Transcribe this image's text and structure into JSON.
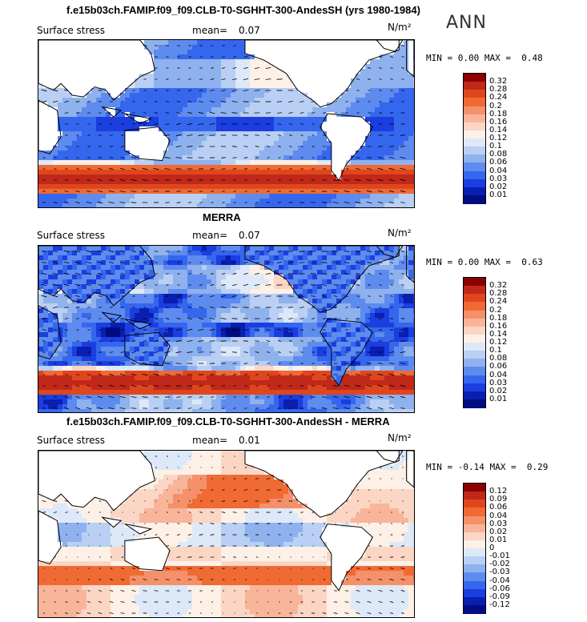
{
  "season": "ANN",
  "panels": [
    {
      "title": "f.e15b03ch.FAMIP.f09_f09.CLB-T0-SGHHT-300-AndesSH (yrs 1980-1984)",
      "variable": "Surface stress",
      "mean_label": "mean=",
      "mean_value": "0.07",
      "units": "N/m²",
      "min_label": "MIN =",
      "min_value": "0.00",
      "max_label": "MAX =",
      "max_value": "0.48",
      "colorbar": {
        "labels": [
          "0.32",
          "0.28",
          "0.24",
          "0.2",
          "0.18",
          "0.16",
          "0.14",
          "0.12",
          "0.1",
          "0.08",
          "0.06",
          "0.04",
          "0.03",
          "0.02",
          "0.01"
        ],
        "colors": [
          "#8b0000",
          "#c0281a",
          "#e0461e",
          "#f06a34",
          "#f5916a",
          "#f8b59a",
          "#fbd6c4",
          "#fdf0e6",
          "#dde8f8",
          "#b9cff3",
          "#8fb2ee",
          "#5e8bee",
          "#3566ee",
          "#1a3ee0",
          "#0a1fb0",
          "#000c80"
        ]
      }
    },
    {
      "title": "MERRA",
      "variable": "Surface stress",
      "mean_label": "mean=",
      "mean_value": "0.07",
      "units": "N/m²",
      "min_label": "MIN =",
      "min_value": "0.00",
      "max_label": "MAX =",
      "max_value": "0.63",
      "colorbar": {
        "labels": [
          "0.32",
          "0.28",
          "0.24",
          "0.2",
          "0.18",
          "0.16",
          "0.14",
          "0.12",
          "0.1",
          "0.08",
          "0.06",
          "0.04",
          "0.03",
          "0.02",
          "0.01"
        ],
        "colors": [
          "#8b0000",
          "#c0281a",
          "#e0461e",
          "#f06a34",
          "#f5916a",
          "#f8b59a",
          "#fbd6c4",
          "#fdf0e6",
          "#dde8f8",
          "#b9cff3",
          "#8fb2ee",
          "#5e8bee",
          "#3566ee",
          "#1a3ee0",
          "#0a1fb0",
          "#000c80"
        ]
      }
    },
    {
      "title": "f.e15b03ch.FAMIP.f09_f09.CLB-T0-SGHHT-300-AndesSH - MERRA",
      "variable": "Surface stress",
      "mean_label": "mean=",
      "mean_value": "0.01",
      "units": "N/m²",
      "min_label": "MIN =",
      "min_value": "-0.14",
      "max_label": "MAX =",
      "max_value": "0.29",
      "colorbar": {
        "labels": [
          "0.12",
          "0.09",
          "0.06",
          "0.04",
          "0.03",
          "0.02",
          "0.01",
          "0",
          "-0.01",
          "-0.02",
          "-0.03",
          "-0.04",
          "-0.06",
          "-0.09",
          "-0.12"
        ],
        "colors": [
          "#8b0000",
          "#c0281a",
          "#e0461e",
          "#f06a34",
          "#f5916a",
          "#f8b59a",
          "#fbd6c4",
          "#fdf0e6",
          "#dde8f8",
          "#b9cff3",
          "#8fb2ee",
          "#5e8bee",
          "#3566ee",
          "#1a3ee0",
          "#0a1fb0",
          "#000c80"
        ]
      }
    }
  ],
  "chart_data": {
    "type": "heatmap",
    "description_fields": {
      "variable": "Surface stress",
      "units": "N/m²",
      "season": "ANN"
    },
    "maps": [
      {
        "title": "f.e15b03ch.FAMIP.f09_f09.CLB-T0-SGHHT-300-AndesSH (yrs 1980-1984)",
        "mean": 0.07,
        "min": 0.0,
        "max": 0.48,
        "levels": [
          0.01,
          0.02,
          0.03,
          0.04,
          0.06,
          0.08,
          0.1,
          0.12,
          0.14,
          0.16,
          0.18,
          0.2,
          0.24,
          0.28,
          0.32
        ]
      },
      {
        "title": "MERRA",
        "mean": 0.07,
        "min": 0.0,
        "max": 0.63,
        "levels": [
          0.01,
          0.02,
          0.03,
          0.04,
          0.06,
          0.08,
          0.1,
          0.12,
          0.14,
          0.16,
          0.18,
          0.2,
          0.24,
          0.28,
          0.32
        ]
      },
      {
        "title": "f.e15b03ch.FAMIP.f09_f09.CLB-T0-SGHHT-300-AndesSH - MERRA",
        "mean": 0.01,
        "min": -0.14,
        "max": 0.29,
        "levels": [
          -0.12,
          -0.09,
          -0.06,
          -0.04,
          -0.03,
          -0.02,
          -0.01,
          0,
          0.01,
          0.02,
          0.03,
          0.04,
          0.06,
          0.09,
          0.12
        ]
      }
    ]
  }
}
